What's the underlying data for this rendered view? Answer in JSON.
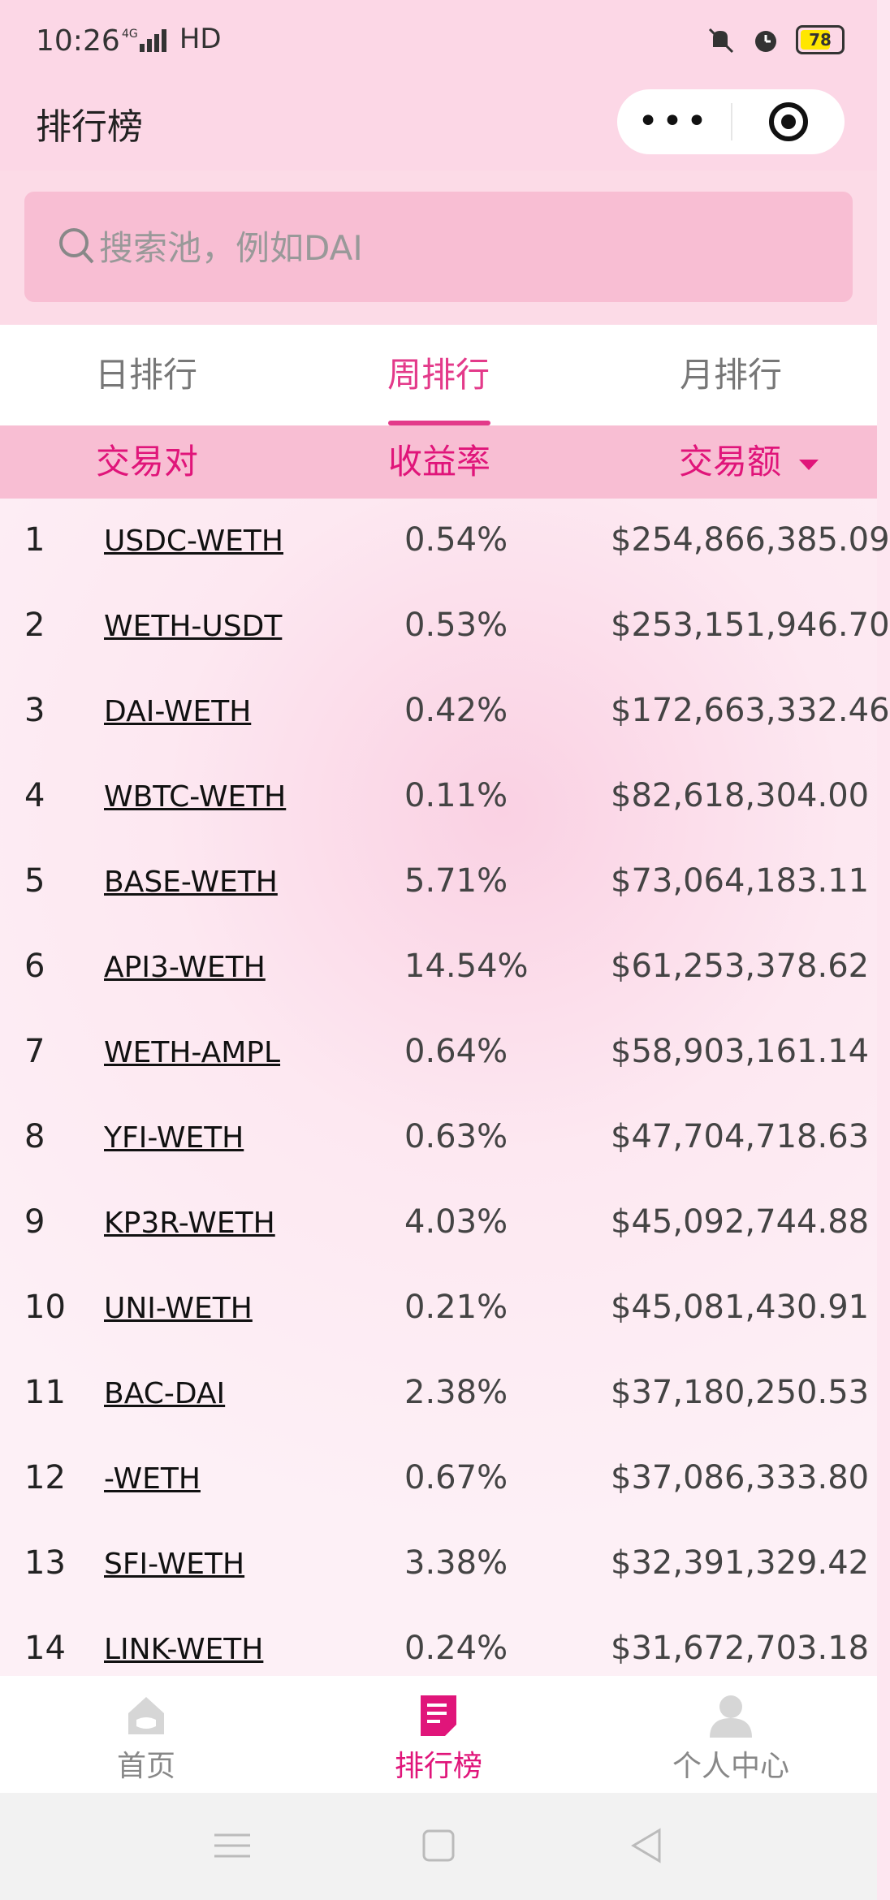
{
  "status_bar": {
    "time": "10:26",
    "network": "4G",
    "hd_label": "HD",
    "battery": "78"
  },
  "nav": {
    "title": "排行榜",
    "menu_dots": "•••"
  },
  "search": {
    "placeholder": "搜索池，例如DAI"
  },
  "tabs": [
    {
      "label": "日排行"
    },
    {
      "label": "周排行",
      "active": true
    },
    {
      "label": "月排行"
    }
  ],
  "table": {
    "headers": {
      "pair": "交易对",
      "rate": "收益率",
      "volume": "交易额"
    },
    "rows": [
      {
        "rank": "1",
        "pair": "USDC-WETH",
        "rate": "0.54%",
        "volume": "$254,866,385.09"
      },
      {
        "rank": "2",
        "pair": "WETH-USDT",
        "rate": "0.53%",
        "volume": "$253,151,946.70"
      },
      {
        "rank": "3",
        "pair": "DAI-WETH",
        "rate": "0.42%",
        "volume": "$172,663,332.46"
      },
      {
        "rank": "4",
        "pair": "WBTC-WETH",
        "rate": "0.11%",
        "volume": "$82,618,304.00"
      },
      {
        "rank": "5",
        "pair": "BASE-WETH",
        "rate": "5.71%",
        "volume": "$73,064,183.11"
      },
      {
        "rank": "6",
        "pair": "API3-WETH",
        "rate": "14.54%",
        "volume": "$61,253,378.62"
      },
      {
        "rank": "7",
        "pair": "WETH-AMPL",
        "rate": "0.64%",
        "volume": "$58,903,161.14"
      },
      {
        "rank": "8",
        "pair": "YFI-WETH",
        "rate": "0.63%",
        "volume": "$47,704,718.63"
      },
      {
        "rank": "9",
        "pair": "KP3R-WETH",
        "rate": "4.03%",
        "volume": "$45,092,744.88"
      },
      {
        "rank": "10",
        "pair": "UNI-WETH",
        "rate": "0.21%",
        "volume": "$45,081,430.91"
      },
      {
        "rank": "11",
        "pair": "BAC-DAI",
        "rate": "2.38%",
        "volume": "$37,180,250.53"
      },
      {
        "rank": "12",
        "pair": "-WETH",
        "rate": "0.67%",
        "volume": "$37,086,333.80"
      },
      {
        "rank": "13",
        "pair": "SFI-WETH",
        "rate": "3.38%",
        "volume": "$32,391,329.42"
      },
      {
        "rank": "14",
        "pair": "LINK-WETH",
        "rate": "0.24%",
        "volume": "$31,672,703.18"
      }
    ]
  },
  "tabbar": [
    {
      "label": "首页",
      "icon": "home-icon"
    },
    {
      "label": "排行榜",
      "icon": "ranking-doc-icon",
      "active": true
    },
    {
      "label": "个人中心",
      "icon": "user-icon"
    }
  ],
  "colors": {
    "accent": "#e0157a",
    "header_bg": "#f8bed3",
    "search_bg": "#f8bed3"
  }
}
